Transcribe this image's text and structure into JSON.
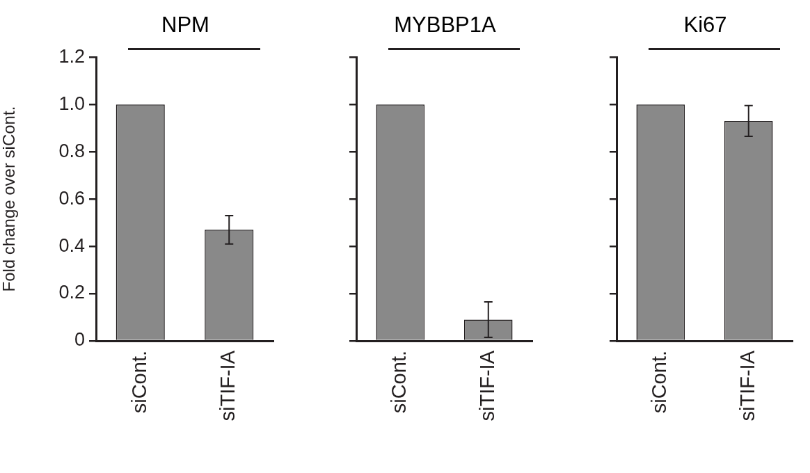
{
  "chart_data": [
    {
      "type": "bar",
      "title": "NPM",
      "ylabel": "Fold change over siCont.",
      "categories": [
        "siCont.",
        "siTIF-IA"
      ],
      "values": [
        1.0,
        0.47
      ],
      "errors": [
        null,
        0.06
      ],
      "color": "#898989",
      "ylim": [
        0,
        1.2
      ],
      "yticks": [
        0,
        0.2,
        0.4,
        0.6,
        0.8,
        {
          "value": 1,
          "label": "1.0"
        },
        1.2
      ],
      "grid": false
    },
    {
      "type": "bar",
      "title": "MYBBP1A",
      "categories": [
        "siCont.",
        "siTIF-IA"
      ],
      "values": [
        1.0,
        0.09
      ],
      "errors": [
        null,
        0.075
      ],
      "color": "#898989",
      "ylim": [
        0,
        1.2
      ],
      "yticks": [
        {
          "value": 0,
          "label": null
        },
        {
          "value": 0.2,
          "label": null
        },
        {
          "value": 0.4,
          "label": null
        },
        {
          "value": 0.6,
          "label": null
        },
        {
          "value": 0.8,
          "label": null
        },
        {
          "value": 1,
          "label": null
        },
        {
          "value": 1.2,
          "label": null
        }
      ],
      "grid": false,
      "tick_labels": "x"
    },
    {
      "type": "bar",
      "title": "Ki67",
      "categories": [
        "siCont.",
        "siTIF-IA"
      ],
      "values": [
        1.0,
        0.93
      ],
      "errors": [
        null,
        0.065
      ],
      "color": "#898989",
      "ylim": [
        0,
        1.2
      ],
      "yticks": [
        {
          "value": 0,
          "label": null
        },
        {
          "value": 0.2,
          "label": null
        },
        {
          "value": 0.4,
          "label": null
        },
        {
          "value": 0.6,
          "label": null
        },
        {
          "value": 0.8,
          "label": null
        },
        {
          "value": 1,
          "label": null
        },
        {
          "value": 1.2,
          "label": null
        }
      ],
      "grid": false,
      "tick_labels": "x"
    }
  ]
}
